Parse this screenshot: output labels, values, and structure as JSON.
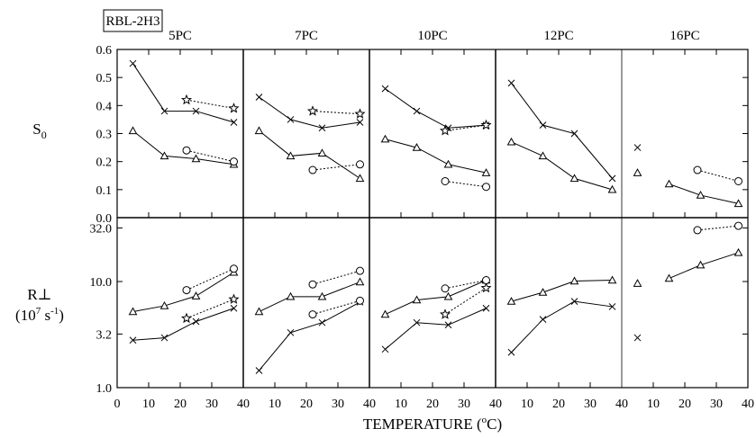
{
  "figure_label": "RBL-2H3",
  "xlabel": "TEMPERATURE (°C)",
  "xlabel_parts": {
    "main": "TEMPERATURE (",
    "sup": "o",
    "end": "C)"
  },
  "ylabel_top": {
    "main": "S",
    "sub": "0"
  },
  "ylabel_bottom": {
    "line1": "R⊥",
    "line2_pre": "(10",
    "sup1": "7",
    "mid": " s",
    "sup2": "-1",
    "end": ")"
  },
  "chart_data": {
    "type": "line",
    "xlim": [
      0,
      40
    ],
    "x_ticks": [
      0,
      10,
      20,
      30,
      40
    ],
    "x_tick_labels_first": [
      "0",
      "10",
      "20",
      "30",
      "40"
    ],
    "x_tick_labels_rest": [
      "10",
      "20",
      "30",
      "40"
    ],
    "top": {
      "ylim": [
        0,
        0.6
      ],
      "y_ticks": [
        "0.0",
        "0.1",
        "0.2",
        "0.3",
        "0.4",
        "0.5",
        "0.6"
      ],
      "y_tick_values": [
        0,
        0.1,
        0.2,
        0.3,
        0.4,
        0.5,
        0.6
      ]
    },
    "bottom": {
      "scale": "log",
      "ylim": [
        1.0,
        40
      ],
      "y_ticks": [
        "1.0",
        "3.2",
        "10.0",
        "32.0"
      ],
      "y_tick_values": [
        1.0,
        3.2,
        10.0,
        32.0
      ]
    },
    "panels": [
      {
        "title": "5PC",
        "top": [
          {
            "marker": "x",
            "style": "solid",
            "x": [
              5,
              15,
              25,
              37
            ],
            "y": [
              0.55,
              0.38,
              0.38,
              0.34
            ]
          },
          {
            "marker": "triangle",
            "style": "solid",
            "x": [
              5,
              15,
              25,
              37
            ],
            "y": [
              0.31,
              0.22,
              0.21,
              0.19
            ]
          },
          {
            "marker": "star",
            "style": "dotted",
            "x": [
              22,
              37
            ],
            "y": [
              0.42,
              0.39
            ]
          },
          {
            "marker": "circle",
            "style": "dotted",
            "x": [
              22,
              37
            ],
            "y": [
              0.24,
              0.2
            ]
          }
        ],
        "bottom": [
          {
            "marker": "x",
            "style": "solid",
            "x": [
              5,
              15,
              25,
              37
            ],
            "y": [
              2.8,
              2.95,
              4.2,
              5.6
            ]
          },
          {
            "marker": "triangle",
            "style": "solid",
            "x": [
              5,
              15,
              25,
              37
            ],
            "y": [
              5.2,
              5.9,
              7.3,
              12.2
            ]
          },
          {
            "marker": "star",
            "style": "dotted",
            "x": [
              22,
              37
            ],
            "y": [
              4.5,
              6.8
            ]
          },
          {
            "marker": "circle",
            "style": "dotted",
            "x": [
              22,
              37
            ],
            "y": [
              8.3,
              13.2
            ]
          }
        ]
      },
      {
        "title": "7PC",
        "top": [
          {
            "marker": "x",
            "style": "solid",
            "x": [
              5,
              15,
              25,
              37
            ],
            "y": [
              0.43,
              0.35,
              0.32,
              0.34
            ]
          },
          {
            "marker": "triangle",
            "style": "solid",
            "x": [
              5,
              15,
              25,
              37
            ],
            "y": [
              0.31,
              0.22,
              0.23,
              0.14
            ]
          },
          {
            "marker": "star",
            "style": "dotted",
            "x": [
              22,
              37
            ],
            "y": [
              0.38,
              0.37
            ]
          },
          {
            "marker": "circle",
            "style": "dotted",
            "x": [
              22,
              37
            ],
            "y": [
              0.17,
              0.19
            ]
          }
        ],
        "bottom": [
          {
            "marker": "x",
            "style": "solid",
            "x": [
              5,
              15,
              25,
              37
            ],
            "y": [
              1.45,
              3.3,
              4.1,
              6.4
            ]
          },
          {
            "marker": "triangle",
            "style": "solid",
            "x": [
              5,
              15,
              25,
              37
            ],
            "y": [
              5.2,
              7.2,
              7.2,
              9.9
            ]
          },
          {
            "marker": "circle",
            "style": "dotted",
            "x": [
              22,
              37
            ],
            "y": [
              4.9,
              6.6
            ]
          },
          {
            "marker": "circle",
            "style": "dotted",
            "x": [
              22,
              37
            ],
            "y": [
              9.4,
              12.6
            ]
          }
        ]
      },
      {
        "title": "10PC",
        "top": [
          {
            "marker": "x",
            "style": "solid",
            "x": [
              5,
              15,
              25,
              37
            ],
            "y": [
              0.46,
              0.38,
              0.32,
              0.33
            ]
          },
          {
            "marker": "triangle",
            "style": "solid",
            "x": [
              5,
              15,
              25,
              37
            ],
            "y": [
              0.28,
              0.25,
              0.19,
              0.16
            ]
          },
          {
            "marker": "star",
            "style": "dotted",
            "x": [
              24,
              37
            ],
            "y": [
              0.31,
              0.33
            ]
          },
          {
            "marker": "circle",
            "style": "dotted",
            "x": [
              24,
              37
            ],
            "y": [
              0.13,
              0.11
            ]
          }
        ],
        "bottom": [
          {
            "marker": "x",
            "style": "solid",
            "x": [
              5,
              15,
              25,
              37
            ],
            "y": [
              2.3,
              4.1,
              3.9,
              5.6
            ]
          },
          {
            "marker": "triangle",
            "style": "solid",
            "x": [
              5,
              15,
              25,
              37
            ],
            "y": [
              4.9,
              6.7,
              7.2,
              10.3
            ]
          },
          {
            "marker": "star",
            "style": "dotted",
            "x": [
              24,
              37
            ],
            "y": [
              4.9,
              8.7
            ]
          },
          {
            "marker": "circle",
            "style": "dotted",
            "x": [
              24,
              37
            ],
            "y": [
              8.6,
              10.3
            ]
          }
        ]
      },
      {
        "title": "12PC",
        "top": [
          {
            "marker": "x",
            "style": "solid",
            "x": [
              5,
              15,
              25,
              37
            ],
            "y": [
              0.48,
              0.33,
              0.3,
              0.14
            ]
          },
          {
            "marker": "triangle",
            "style": "solid",
            "x": [
              5,
              15,
              25,
              37
            ],
            "y": [
              0.27,
              0.22,
              0.14,
              0.1
            ]
          }
        ],
        "bottom": [
          {
            "marker": "x",
            "style": "solid",
            "x": [
              5,
              15,
              25,
              37
            ],
            "y": [
              2.15,
              4.4,
              6.5,
              5.8
            ]
          },
          {
            "marker": "triangle",
            "style": "solid",
            "x": [
              5,
              15,
              25,
              37
            ],
            "y": [
              6.5,
              7.9,
              10.1,
              10.3
            ]
          }
        ]
      },
      {
        "title": "16PC",
        "top": [
          {
            "marker": "x",
            "style": "none",
            "x": [
              5
            ],
            "y": [
              0.25
            ]
          },
          {
            "marker": "triangle",
            "style": "none",
            "x": [
              5
            ],
            "y": [
              0.16
            ]
          },
          {
            "marker": "triangle",
            "style": "solid",
            "x": [
              15,
              25,
              37
            ],
            "y": [
              0.12,
              0.08,
              0.05
            ]
          },
          {
            "marker": "circle",
            "style": "dotted",
            "x": [
              24,
              37
            ],
            "y": [
              0.17,
              0.13
            ]
          }
        ],
        "bottom": [
          {
            "marker": "x",
            "style": "none",
            "x": [
              5
            ],
            "y": [
              2.95
            ]
          },
          {
            "marker": "triangle",
            "style": "none",
            "x": [
              5
            ],
            "y": [
              9.6
            ]
          },
          {
            "marker": "triangle",
            "style": "solid",
            "x": [
              15,
              25,
              37
            ],
            "y": [
              10.7,
              14.3,
              18.7
            ]
          },
          {
            "marker": "circle",
            "style": "dotted",
            "x": [
              24,
              37
            ],
            "y": [
              30.5,
              33.5
            ]
          }
        ]
      }
    ]
  }
}
